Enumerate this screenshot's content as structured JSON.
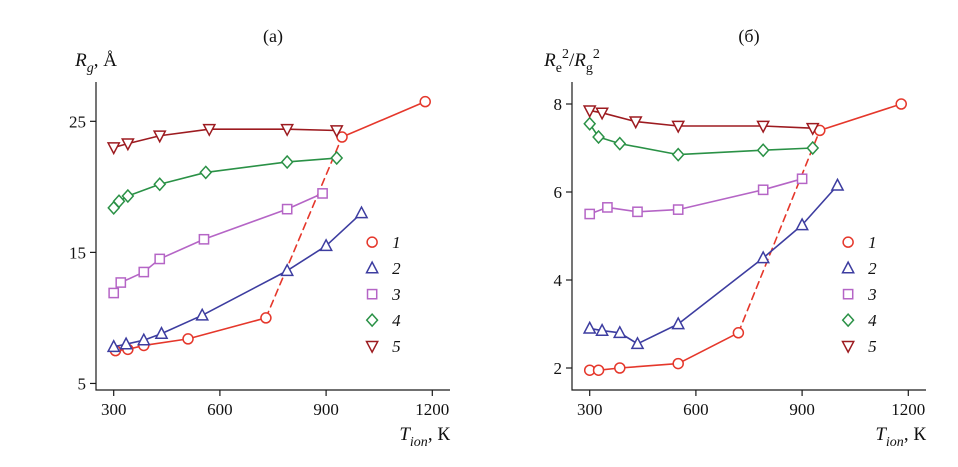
{
  "page": {
    "background": "#ffffff"
  },
  "chart_data": [
    {
      "type": "line",
      "panel": "a",
      "title": "(а)",
      "xlabel_tokens": [
        {
          "text": "T",
          "italic": true
        },
        {
          "text": "ion",
          "sub": true,
          "italic": true
        },
        {
          "text": ", К"
        }
      ],
      "ylabel_tokens": [
        {
          "text": "R",
          "italic": true
        },
        {
          "text": "g",
          "sub": true,
          "italic": true
        },
        {
          "text": ", Å"
        }
      ],
      "xlim": [
        250,
        1250
      ],
      "ylim": [
        4.5,
        28
      ],
      "xticks": [
        300,
        600,
        900,
        1200
      ],
      "yticks": [
        5,
        15,
        25
      ],
      "legend": [
        "1",
        "2",
        "3",
        "4",
        "5"
      ],
      "series": [
        {
          "name": "1",
          "marker": "circle",
          "color": "#e5372b",
          "x": [
            305,
            340,
            385,
            510,
            730,
            945,
            1180
          ],
          "y": [
            7.5,
            7.6,
            7.9,
            8.4,
            10.0,
            23.8,
            26.5
          ],
          "dashed_segments": [
            [
              4,
              5
            ]
          ]
        },
        {
          "name": "2",
          "marker": "triangle-up",
          "color": "#3d3da0",
          "x": [
            300,
            335,
            385,
            435,
            550,
            790,
            900,
            1000
          ],
          "y": [
            7.8,
            8.0,
            8.3,
            8.8,
            10.2,
            13.6,
            15.5,
            18.0
          ]
        },
        {
          "name": "3",
          "marker": "square",
          "color": "#b565c6",
          "x": [
            300,
            320,
            385,
            430,
            555,
            790,
            890
          ],
          "y": [
            11.9,
            12.7,
            13.5,
            14.5,
            16.0,
            18.3,
            19.5
          ]
        },
        {
          "name": "4",
          "marker": "diamond",
          "color": "#2a9146",
          "x": [
            300,
            315,
            340,
            430,
            560,
            790,
            930
          ],
          "y": [
            18.4,
            18.9,
            19.3,
            20.2,
            21.1,
            21.9,
            22.2
          ]
        },
        {
          "name": "5",
          "marker": "triangle-down",
          "color": "#9d1b20",
          "x": [
            300,
            340,
            430,
            570,
            790,
            930
          ],
          "y": [
            23.0,
            23.3,
            23.9,
            24.4,
            24.4,
            24.3
          ]
        }
      ]
    },
    {
      "type": "line",
      "panel": "b",
      "title": "(б)",
      "xlabel_tokens": [
        {
          "text": "T",
          "italic": true
        },
        {
          "text": "ion",
          "sub": true,
          "italic": true
        },
        {
          "text": ", К"
        }
      ],
      "ylabel_tokens": [
        {
          "text": "R",
          "italic": true
        },
        {
          "text": "e",
          "sub": true
        },
        {
          "text": "2",
          "sup": true
        },
        {
          "text": "/"
        },
        {
          "text": "R",
          "italic": true
        },
        {
          "text": "g",
          "sub": true
        },
        {
          "text": "2",
          "sup": true
        }
      ],
      "xlim": [
        250,
        1250
      ],
      "ylim": [
        1.5,
        8.5
      ],
      "xticks": [
        300,
        600,
        900,
        1200
      ],
      "yticks": [
        2,
        4,
        6,
        8
      ],
      "legend": [
        "1",
        "2",
        "3",
        "4",
        "5"
      ],
      "series": [
        {
          "name": "1",
          "marker": "circle",
          "color": "#e5372b",
          "x": [
            300,
            325,
            385,
            550,
            720,
            950,
            1180
          ],
          "y": [
            1.95,
            1.95,
            2.0,
            2.1,
            2.8,
            7.4,
            8.0
          ],
          "dashed_segments": [
            [
              4,
              5
            ]
          ]
        },
        {
          "name": "2",
          "marker": "triangle-up",
          "color": "#3d3da0",
          "x": [
            300,
            335,
            385,
            435,
            550,
            790,
            900,
            1000
          ],
          "y": [
            2.9,
            2.85,
            2.8,
            2.55,
            3.0,
            4.5,
            5.25,
            6.15
          ]
        },
        {
          "name": "3",
          "marker": "square",
          "color": "#b565c6",
          "x": [
            300,
            350,
            435,
            550,
            790,
            900
          ],
          "y": [
            5.5,
            5.65,
            5.55,
            5.6,
            6.05,
            6.3
          ]
        },
        {
          "name": "4",
          "marker": "diamond",
          "color": "#2a9146",
          "x": [
            300,
            325,
            385,
            550,
            790,
            930
          ],
          "y": [
            7.55,
            7.25,
            7.1,
            6.85,
            6.95,
            7.0
          ]
        },
        {
          "name": "5",
          "marker": "triangle-down",
          "color": "#9d1b20",
          "x": [
            300,
            335,
            430,
            550,
            790,
            930
          ],
          "y": [
            7.85,
            7.8,
            7.6,
            7.5,
            7.5,
            7.45
          ]
        }
      ]
    }
  ]
}
